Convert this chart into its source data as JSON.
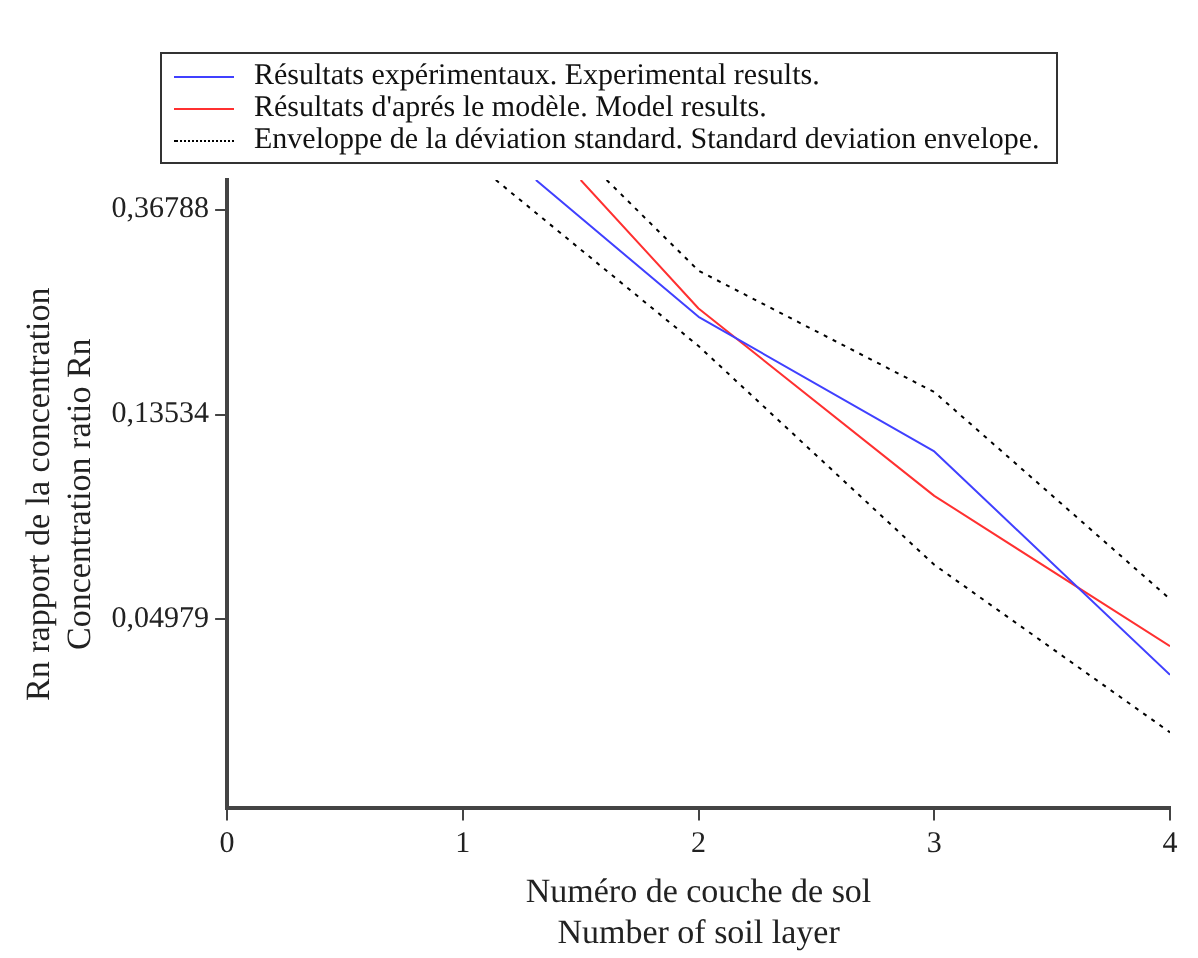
{
  "chart_data": {
    "type": "line",
    "xlabel": "Numéro de couche de sol\nNumber of soil layer",
    "ylabel": "Rn rapport de la concentration\nConcentration ratio Rn",
    "log": "y",
    "grid": false,
    "legend": "top",
    "marker": "none",
    "xlim": [
      0,
      4
    ],
    "xticks": [
      0,
      1,
      2,
      3,
      4
    ],
    "ylim": [
      0.0198,
      0.425
    ],
    "yticks": [
      {
        "value": 0.04979,
        "label": "0,04979"
      },
      {
        "value": 0.13534,
        "label": "0,13534"
      },
      {
        "value": 0.36788,
        "label": "0,36788"
      }
    ],
    "series": [
      {
        "name": "Résultats expérimentaux. Experimental results.",
        "color": "#4040ff",
        "line_style": "solid",
        "x": [
          1.31,
          2,
          3,
          4
        ],
        "values": [
          0.425,
          0.218,
          0.113,
          0.038
        ]
      },
      {
        "name": "Résultats d'aprés le modèle. Model results.",
        "color": "#ff3030",
        "line_style": "solid",
        "x": [
          1.5,
          2,
          3,
          4
        ],
        "values": [
          0.425,
          0.227,
          0.091,
          0.0437
        ]
      },
      {
        "name": "Enveloppe de la déviation standard. Standard deviation envelope.",
        "color": "#000000",
        "line_style": "dotted",
        "x": [
          1.61,
          2,
          3,
          4
        ],
        "values": [
          0.425,
          0.273,
          0.151,
          0.055
        ]
      },
      {
        "color": "#000000",
        "line_style": "dotted",
        "x": [
          1.14,
          2,
          3,
          4
        ],
        "values": [
          0.425,
          0.189,
          0.065,
          0.0287
        ]
      }
    ]
  }
}
